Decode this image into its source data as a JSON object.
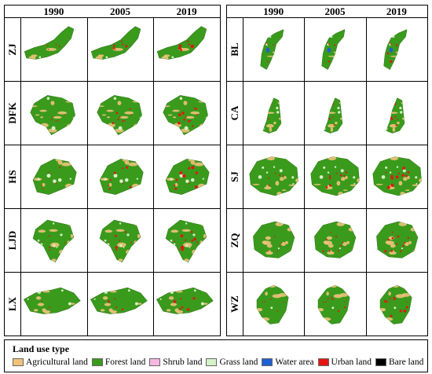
{
  "years": [
    "1990",
    "2005",
    "2019"
  ],
  "left_regions": [
    "ZJ",
    "DFK",
    "HS",
    "LJD",
    "LX"
  ],
  "right_regions": [
    "BL",
    "CA",
    "SJ",
    "ZQ",
    "WZ"
  ],
  "legend": {
    "title": "Land use type",
    "items": [
      {
        "label": "Agricultural land",
        "color": "#f0c27b"
      },
      {
        "label": "Forest land",
        "color": "#3a9a1c"
      },
      {
        "label": "Shrub land",
        "color": "#f6b6e2"
      },
      {
        "label": "Grass land",
        "color": "#d6f2c8"
      },
      {
        "label": "Water area",
        "color": "#1f5fd1"
      },
      {
        "label": "Urban land",
        "color": "#e51414"
      },
      {
        "label": "Bare land",
        "color": "#000000"
      }
    ]
  }
}
